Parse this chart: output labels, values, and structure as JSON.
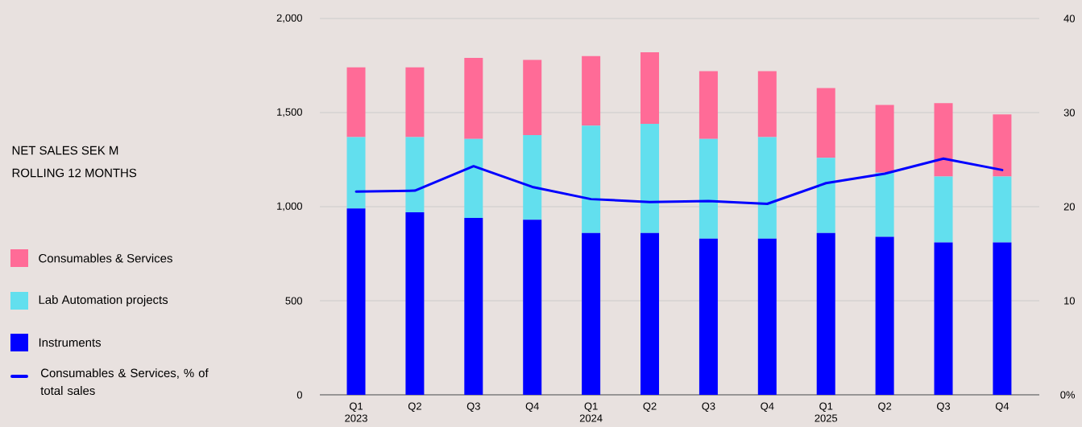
{
  "chart_data": {
    "type": "bar",
    "title": "NET SALES SEK M",
    "subtitle": "ROLLING 12 MONTHS",
    "categories": [
      "Q1 2023",
      "Q2",
      "Q3",
      "Q4",
      "Q1 2024",
      "Q2",
      "Q3",
      "Q4",
      "Q1 2025",
      "Q2",
      "Q3",
      "Q4"
    ],
    "stacked": true,
    "series": [
      {
        "name": "Instruments",
        "color": "#0000ff",
        "values": [
          990,
          970,
          940,
          930,
          860,
          860,
          830,
          830,
          860,
          840,
          810,
          810
        ]
      },
      {
        "name": "Lab Automation projects",
        "color": "#62dfee",
        "values": [
          380,
          400,
          420,
          450,
          570,
          580,
          530,
          540,
          400,
          340,
          350,
          350
        ]
      },
      {
        "name": "Consumables & Services",
        "color": "#ff6b97",
        "values": [
          370,
          370,
          430,
          400,
          370,
          380,
          360,
          350,
          370,
          360,
          390,
          330
        ]
      },
      {
        "name": "Consumables & Services, % of total sales",
        "type": "line",
        "axis": "y2",
        "color": "#0000ff",
        "line_style": "solid",
        "values": [
          21.6,
          21.7,
          24.3,
          22.1,
          20.8,
          20.5,
          20.6,
          20.3,
          22.5,
          23.5,
          25.1,
          23.9
        ]
      }
    ],
    "ylim": [
      0,
      2000
    ],
    "yticks": [
      0,
      500,
      {
        "value": 1000,
        "label": "1,000"
      },
      {
        "value": 1500,
        "label": "1,500"
      },
      {
        "value": 2000,
        "label": "2,000"
      }
    ],
    "y2lim": [
      0,
      40
    ],
    "y2ticks": [
      {
        "value": 0,
        "label": "0%"
      },
      10,
      20,
      30,
      40
    ],
    "grid": "y",
    "legend": "left"
  }
}
